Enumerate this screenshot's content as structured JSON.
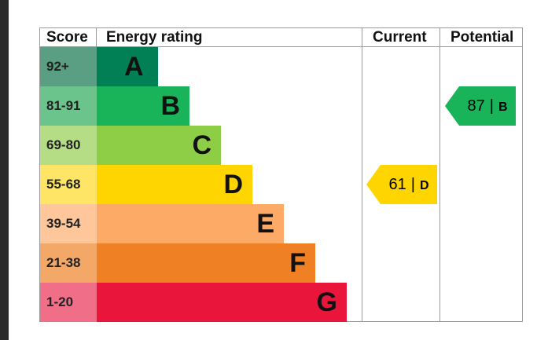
{
  "chart_data": {
    "type": "table",
    "columns": [
      "Score",
      "Energy rating",
      "Current",
      "Potential"
    ],
    "bands": [
      {
        "score": "92+",
        "rating": "A",
        "color": "#008054"
      },
      {
        "score": "81-91",
        "rating": "B",
        "color": "#19b459"
      },
      {
        "score": "69-80",
        "rating": "C",
        "color": "#8dce46"
      },
      {
        "score": "55-68",
        "rating": "D",
        "color": "#ffd500"
      },
      {
        "score": "39-54",
        "rating": "E",
        "color": "#fcaa65"
      },
      {
        "score": "21-38",
        "rating": "F",
        "color": "#ef8023"
      },
      {
        "score": "1-20",
        "rating": "G",
        "color": "#e9153b"
      }
    ],
    "current": {
      "value": 61,
      "rating": "D",
      "color": "#ffd500",
      "separator": "|"
    },
    "potential": {
      "value": 87,
      "rating": "B",
      "color": "#19b459",
      "separator": "|"
    }
  }
}
